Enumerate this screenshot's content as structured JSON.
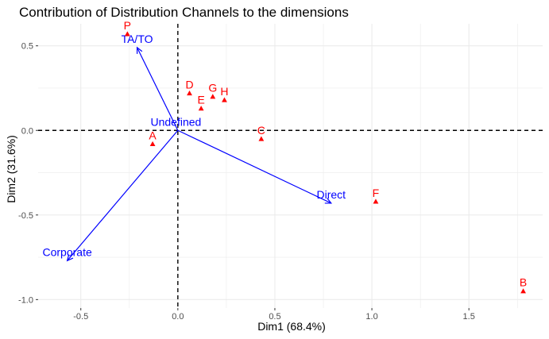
{
  "chart_data": {
    "type": "scatter",
    "title": "Contribution of Distribution Channels to the dimensions",
    "xlabel": "Dim1 (68.4%)",
    "ylabel": "Dim2 (31.6%)",
    "xlim": [
      -0.72,
      1.88
    ],
    "ylim": [
      -1.05,
      0.63
    ],
    "xticks": [
      -0.5,
      0.0,
      0.5,
      1.0,
      1.5
    ],
    "xtick_labels": [
      "-0.5",
      "0.0",
      "0.5",
      "1.0",
      "1.5"
    ],
    "yticks": [
      0.5,
      0.0,
      -0.5,
      -1.0
    ],
    "ytick_labels": [
      "0.5",
      "0.0",
      "-0.5",
      "-1.0"
    ],
    "grid": true,
    "reference_lines": {
      "x": 0,
      "y": 0,
      "style": "dashed"
    },
    "row_points": [
      {
        "label": "P",
        "x": -0.26,
        "y": 0.57
      },
      {
        "label": "A",
        "x": -0.13,
        "y": -0.08
      },
      {
        "label": "D",
        "x": 0.06,
        "y": 0.22
      },
      {
        "label": "E",
        "x": 0.12,
        "y": 0.13
      },
      {
        "label": "G",
        "x": 0.18,
        "y": 0.2
      },
      {
        "label": "H",
        "x": 0.24,
        "y": 0.18
      },
      {
        "label": "C",
        "x": 0.43,
        "y": -0.05
      },
      {
        "label": "F",
        "x": 1.02,
        "y": -0.42
      },
      {
        "label": "B",
        "x": 1.78,
        "y": -0.95
      }
    ],
    "variable_arrows": [
      {
        "label": "TA/TO",
        "x": -0.21,
        "y": 0.49
      },
      {
        "label": "Undefined",
        "x": -0.01,
        "y": 0.0
      },
      {
        "label": "Direct",
        "x": 0.79,
        "y": -0.43
      },
      {
        "label": "Corporate",
        "x": -0.57,
        "y": -0.77
      }
    ],
    "colors": {
      "rows": "#ff0000",
      "variables": "#0000ff",
      "grid": "#ebebeb"
    }
  }
}
